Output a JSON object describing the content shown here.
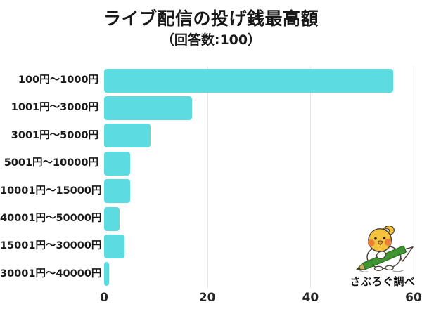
{
  "chart_data": {
    "type": "bar",
    "orientation": "horizontal",
    "title": "ライブ配信の投げ銭最高額",
    "subtitle": "（回答数:100）",
    "categories": [
      "100円～1000円",
      "1001円～3000円",
      "3001円～5000円",
      "5001円～10000円",
      "10001円～15000円",
      "40001円～50000円",
      "15001円～30000円",
      "30001円～40000円"
    ],
    "values": [
      56,
      17,
      9,
      5,
      5,
      3,
      4,
      1
    ],
    "xlim": [
      0,
      60
    ],
    "x_ticks": [
      0,
      20,
      40,
      60
    ],
    "grid": true,
    "legend": "none",
    "bar_color": "#5cdce0",
    "gridline_color": "#e7e7e7",
    "text_color": "#191919"
  },
  "footer": {
    "credit": "さぶろぐ調べ",
    "mascot_icon": "bird-with-pencil-icon"
  }
}
